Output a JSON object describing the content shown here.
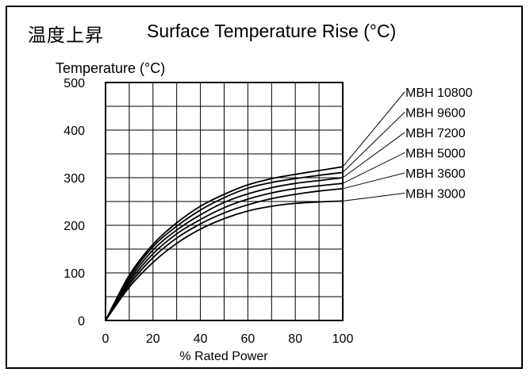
{
  "title_cn": "温度上昇",
  "title_en": "Surface Temperature Rise (°C)",
  "chart_data": {
    "type": "line",
    "ylabel": "Temperature (°C)",
    "xlabel": "% Rated Power",
    "xlim": [
      0,
      100
    ],
    "ylim": [
      0,
      500
    ],
    "x_ticks": [
      "0",
      "20",
      "40",
      "60",
      "80",
      "100"
    ],
    "y_ticks": [
      "0",
      "100",
      "200",
      "300",
      "400",
      "500"
    ],
    "grid": true,
    "legend_placement": "right",
    "x": [
      0,
      10,
      20,
      30,
      40,
      50,
      60,
      70,
      80,
      90,
      100
    ],
    "series": [
      {
        "name": "MBH 10800",
        "values": [
          0,
          95,
          160,
          205,
          240,
          265,
          285,
          298,
          307,
          315,
          323
        ]
      },
      {
        "name": "MBH 9600",
        "values": [
          0,
          90,
          155,
          198,
          232,
          258,
          278,
          290,
          298,
          305,
          311
        ]
      },
      {
        "name": "MBH 7200",
        "values": [
          0,
          85,
          148,
          190,
          222,
          248,
          266,
          279,
          288,
          294,
          300
        ]
      },
      {
        "name": "MBH 5000",
        "values": [
          0,
          80,
          140,
          182,
          212,
          237,
          255,
          268,
          277,
          283,
          288
        ]
      },
      {
        "name": "MBH 3600",
        "values": [
          0,
          75,
          132,
          173,
          203,
          226,
          243,
          256,
          265,
          272,
          277
        ]
      },
      {
        "name": "MBH 3000",
        "values": [
          0,
          70,
          122,
          162,
          192,
          214,
          230,
          240,
          246,
          249,
          251
        ]
      }
    ]
  }
}
